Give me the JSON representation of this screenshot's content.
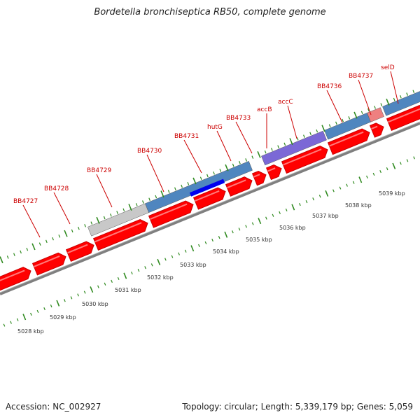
{
  "title": "Bordetella bronchiseptica RB50, complete genome",
  "accession": "Accession: NC_002927",
  "summary": "Topology: circular; Length: 5,339,179 bp; Genes: 5,059",
  "colors": {
    "cds": "#ff0000",
    "cds_edge": "#c80000",
    "backbone": "#7f7f7f",
    "tick": "#2f8a1f",
    "label": "#cc0000",
    "gene_blue": "#4f86bf",
    "gene_grey": "#c8c8c8",
    "gene_purple": "#7b68d6",
    "gene_pink": "#ee8080",
    "gene_darkblue": "#0000ee"
  },
  "kbp_labels": [
    "5028 kbp",
    "5029 kbp",
    "5030 kbp",
    "5031 kbp",
    "5032 kbp",
    "5033 kbp",
    "5034 kbp",
    "5035 kbp",
    "5036 kbp",
    "5037 kbp",
    "5038 kbp",
    "5039 kbp"
  ],
  "gene_labels": [
    "BB4727",
    "BB4728",
    "BB4729",
    "BB4730",
    "BB4731",
    "hutG",
    "BB4733",
    "accB",
    "accC",
    "BB4736",
    "BB4737",
    "selD"
  ]
}
